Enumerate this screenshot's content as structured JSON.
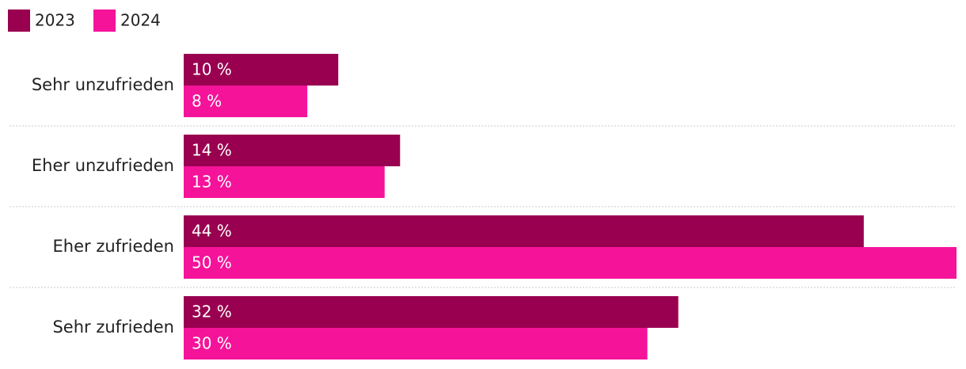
{
  "chart_data": {
    "type": "bar",
    "orientation": "horizontal",
    "categories": [
      "Sehr unzufrieden",
      "Eher unzufrieden",
      "Eher zufrieden",
      "Sehr zufrieden"
    ],
    "series": [
      {
        "name": "2023",
        "color": "#990050",
        "values": [
          10,
          14,
          44,
          32
        ],
        "value_labels": [
          "10 %",
          "14 %",
          "44 %",
          "32 %"
        ]
      },
      {
        "name": "2024",
        "color": "#f5139a",
        "values": [
          8,
          13,
          50,
          30
        ],
        "value_labels": [
          "8 %",
          "13 %",
          "50 %",
          "30 %"
        ]
      }
    ],
    "legend": "top-left"
  }
}
